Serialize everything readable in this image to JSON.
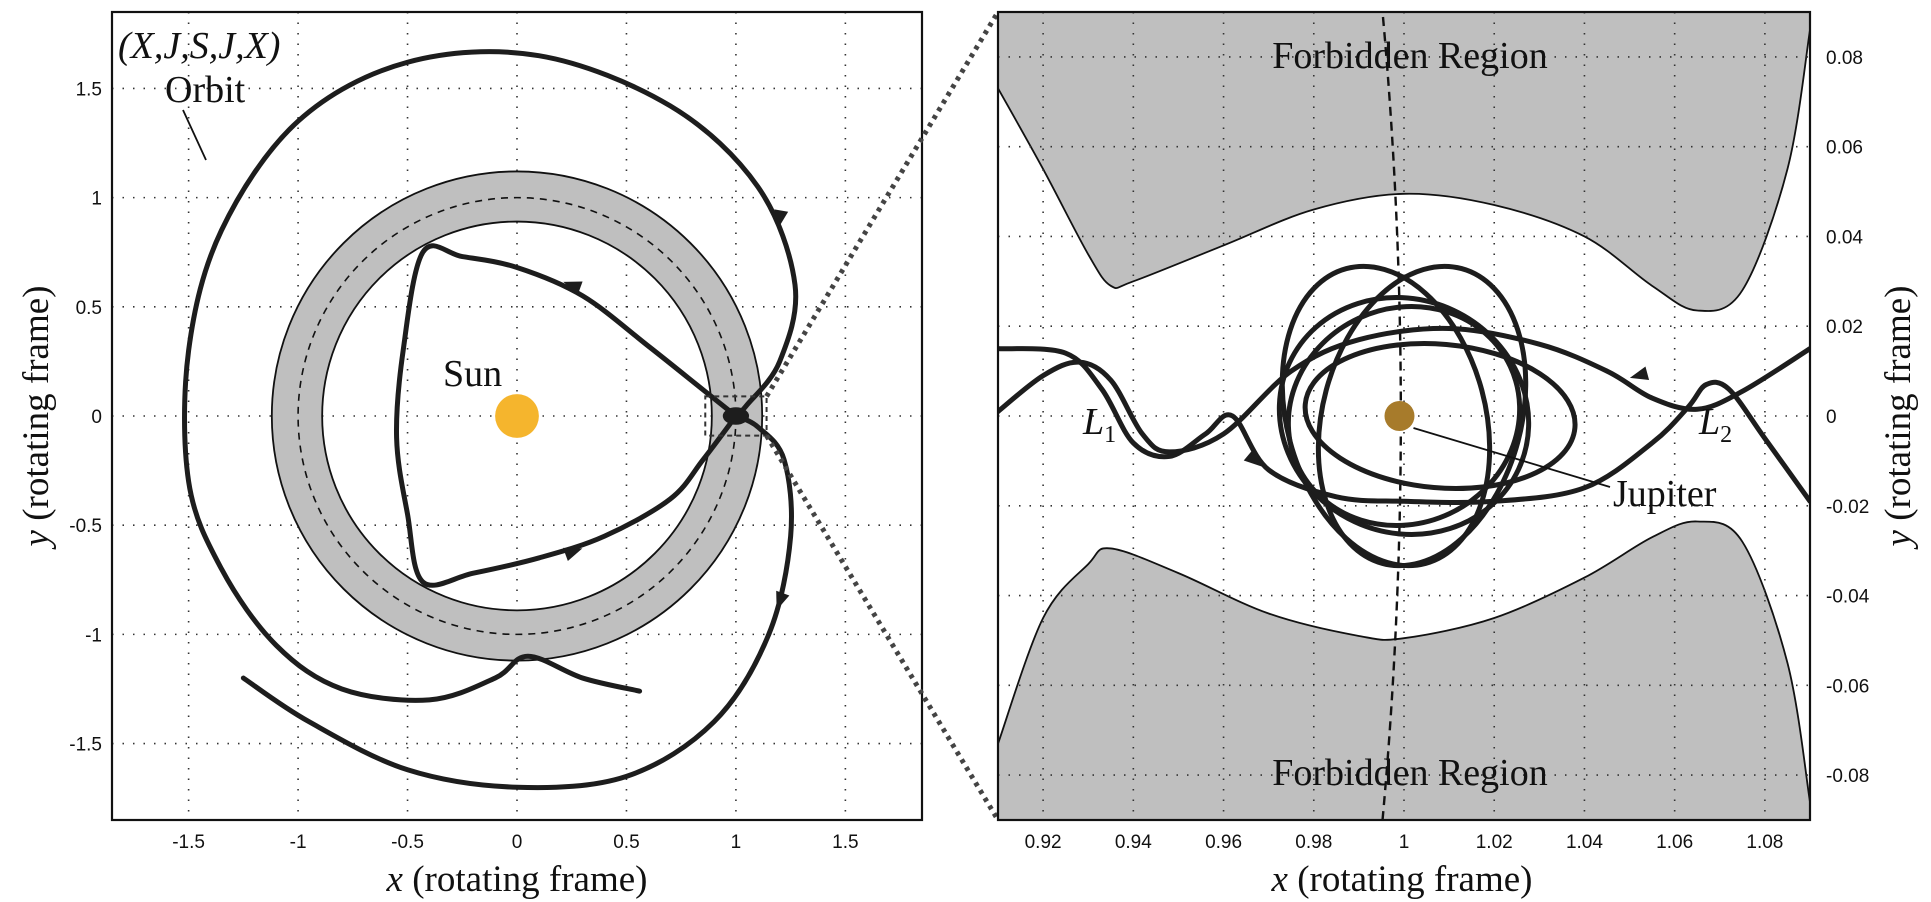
{
  "chart_data": [
    {
      "type": "line",
      "panel": "left",
      "xlabel_var": "x",
      "xlabel_rest": " (rotating frame)",
      "ylabel_var": "y",
      "ylabel_rest": " (rotating frame)",
      "xlim": [
        -1.85,
        1.85
      ],
      "ylim": [
        -1.85,
        1.85
      ],
      "xticks": [
        -1.5,
        -1,
        -0.5,
        0,
        0.5,
        1,
        1.5
      ],
      "yticks": [
        -1.5,
        -1,
        -0.5,
        0,
        0.5,
        1,
        1.5
      ],
      "xtick_labels": [
        "-1.5",
        "-1",
        "-0.5",
        "0",
        "0.5",
        "1",
        "1.5"
      ],
      "ytick_labels": [
        "-1.5",
        "-1",
        "-0.5",
        "0",
        "0.5",
        "1",
        "1.5"
      ],
      "grid": true,
      "annotations": {
        "orbit_name": "(X,J,S,J,X)",
        "orbit_word": "Orbit",
        "sun": "Sun"
      },
      "sun": {
        "x": 0,
        "y": 0,
        "color": "#f5b52d"
      },
      "jupiter": {
        "x": 1,
        "y": 0,
        "color": "#1d1d1d"
      },
      "annulus": {
        "inner_radius": 0.89,
        "outer_radius": 1.12,
        "dashed_radius": 1.0,
        "color": "#bfbfbf"
      },
      "series": [
        {
          "points": [
            [
              0.56,
              -1.26
            ],
            [
              0.3,
              -1.2
            ],
            [
              0.05,
              -1.1
            ],
            [
              -0.1,
              -1.2
            ],
            [
              -0.4,
              -1.3
            ],
            [
              -0.8,
              -1.25
            ],
            [
              -1.1,
              -1.05
            ],
            [
              -1.35,
              -0.7
            ],
            [
              -1.5,
              -0.3
            ],
            [
              -1.5,
              0.3
            ],
            [
              -1.35,
              0.85
            ],
            [
              -1.0,
              1.35
            ],
            [
              -0.5,
              1.62
            ],
            [
              0.1,
              1.65
            ],
            [
              0.7,
              1.42
            ],
            [
              1.1,
              1.05
            ],
            [
              1.27,
              0.6
            ],
            [
              1.2,
              0.25
            ],
            [
              1.05,
              0.05
            ],
            [
              1.0,
              0
            ]
          ]
        },
        {
          "points": [
            [
              1.0,
              0
            ],
            [
              1.1,
              -0.05
            ],
            [
              1.22,
              -0.2
            ],
            [
              1.25,
              -0.55
            ],
            [
              1.15,
              -1.0
            ],
            [
              0.9,
              -1.4
            ],
            [
              0.5,
              -1.65
            ],
            [
              0.0,
              -1.7
            ],
            [
              -0.5,
              -1.62
            ],
            [
              -0.95,
              -1.4
            ],
            [
              -1.25,
              -1.2
            ]
          ]
        },
        {
          "points": [
            [
              1.0,
              0
            ],
            [
              0.85,
              0.12
            ],
            [
              0.6,
              0.32
            ],
            [
              0.3,
              0.55
            ],
            [
              0.0,
              0.68
            ],
            [
              -0.25,
              0.73
            ],
            [
              -0.43,
              0.75
            ],
            [
              -0.52,
              0.3
            ],
            [
              -0.55,
              -0.1
            ],
            [
              -0.5,
              -0.45
            ],
            [
              -0.43,
              -0.76
            ],
            [
              -0.2,
              -0.72
            ],
            [
              0.1,
              -0.65
            ],
            [
              0.4,
              -0.55
            ],
            [
              0.7,
              -0.38
            ],
            [
              0.85,
              -0.2
            ],
            [
              1.0,
              0
            ]
          ]
        }
      ],
      "arrows": [
        [
          1.2,
          0.9
        ],
        [
          0.25,
          0.6
        ],
        [
          0.26,
          -0.62
        ],
        [
          1.2,
          -0.85
        ]
      ]
    },
    {
      "type": "line",
      "panel": "right",
      "xlabel_var": "x",
      "xlabel_rest": " (rotating frame)",
      "ylabel_var": "y",
      "ylabel_rest": " (rotating frame)",
      "xlim": [
        0.91,
        1.09
      ],
      "ylim": [
        -0.09,
        0.09
      ],
      "xticks": [
        0.92,
        0.94,
        0.96,
        0.98,
        1,
        1.02,
        1.04,
        1.06,
        1.08
      ],
      "yticks": [
        0.08,
        0.06,
        0.04,
        0.02,
        0,
        -0.02,
        -0.04,
        -0.06,
        -0.08
      ],
      "xtick_labels": [
        "0.92",
        "0.94",
        "0.96",
        "0.98",
        "1",
        "1.02",
        "1.04",
        "1.06",
        "1.08"
      ],
      "ytick_labels": [
        "0.08",
        "0.06",
        "0.04",
        "0.02",
        "0",
        "-0.02",
        "-0.04",
        "-0.06",
        "-0.08"
      ],
      "grid": true,
      "annotations": {
        "forbidden_top": "Forbidden Region",
        "forbidden_bottom": "Forbidden Region",
        "L1": "L",
        "L1_sub": "1",
        "L2": "L",
        "L2_sub": "2",
        "jupiter": "Jupiter"
      },
      "jupiter": {
        "x": 0.999,
        "y": 0,
        "color": "#a77b2b"
      },
      "forbidden_region_color": "#bfbfbf",
      "forbidden_top_boundary": [
        [
          0.91,
          0.073
        ],
        [
          0.92,
          0.055
        ],
        [
          0.93,
          0.036
        ],
        [
          0.935,
          0.029
        ],
        [
          0.94,
          0.03
        ],
        [
          0.96,
          0.038
        ],
        [
          0.98,
          0.046
        ],
        [
          1.0,
          0.0495
        ],
        [
          1.02,
          0.047
        ],
        [
          1.04,
          0.04
        ],
        [
          1.055,
          0.029
        ],
        [
          1.065,
          0.0235
        ],
        [
          1.075,
          0.028
        ],
        [
          1.085,
          0.055
        ],
        [
          1.09,
          0.086
        ]
      ],
      "forbidden_bottom_boundary": [
        [
          0.91,
          -0.073
        ],
        [
          0.92,
          -0.045
        ],
        [
          0.93,
          -0.033
        ],
        [
          0.935,
          -0.0295
        ],
        [
          0.95,
          -0.035
        ],
        [
          0.97,
          -0.044
        ],
        [
          0.99,
          -0.049
        ],
        [
          1.0,
          -0.0495
        ],
        [
          1.02,
          -0.045
        ],
        [
          1.04,
          -0.036
        ],
        [
          1.055,
          -0.027
        ],
        [
          1.065,
          -0.0235
        ],
        [
          1.075,
          -0.028
        ],
        [
          1.085,
          -0.055
        ],
        [
          1.09,
          -0.086
        ]
      ],
      "series": [
        {
          "points": [
            [
              0.91,
              0.015
            ],
            [
              0.925,
              0.014
            ],
            [
              0.933,
              0.006
            ],
            [
              0.94,
              -0.006
            ],
            [
              0.948,
              -0.009
            ],
            [
              0.956,
              -0.004
            ],
            [
              0.962,
              0.0
            ],
            [
              0.97,
              -0.012
            ],
            [
              0.985,
              -0.018
            ],
            [
              1.0,
              -0.019
            ],
            [
              1.02,
              -0.019
            ],
            [
              1.04,
              -0.016
            ],
            [
              1.055,
              -0.006
            ],
            [
              1.063,
              0.002
            ],
            [
              1.067,
              0.007
            ],
            [
              1.072,
              0.006
            ],
            [
              1.08,
              -0.005
            ],
            [
              1.09,
              -0.019
            ]
          ]
        },
        {
          "points": [
            [
              0.91,
              0.001
            ],
            [
              0.92,
              0.009
            ],
            [
              0.928,
              0.012
            ],
            [
              0.935,
              0.008
            ],
            [
              0.942,
              -0.004
            ],
            [
              0.948,
              -0.008
            ],
            [
              0.96,
              -0.004
            ],
            [
              0.975,
              0.01
            ],
            [
              0.99,
              0.017
            ],
            [
              1.01,
              0.0195
            ],
            [
              1.03,
              0.016
            ],
            [
              1.045,
              0.01
            ],
            [
              1.055,
              0.004
            ],
            [
              1.065,
              0.0015
            ],
            [
              1.075,
              0.0055
            ],
            [
              1.09,
              0.015
            ]
          ]
        },
        {
          "ellipse": [
            0.996,
            0.0,
            0.022,
            0.034,
            -15
          ]
        },
        {
          "ellipse": [
            1.004,
            0.0,
            0.022,
            0.034,
            15
          ]
        },
        {
          "ellipse": [
            1.0,
            0.0,
            0.028,
            0.026,
            25
          ]
        },
        {
          "ellipse": [
            1.0,
            0.0,
            0.026,
            0.024,
            -25
          ]
        },
        {
          "ellipse": [
            1.008,
            0.0,
            0.03,
            0.016,
            5
          ]
        }
      ],
      "arrows": [
        [
          0.967,
          -0.01
        ],
        [
          1.052,
          0.009
        ]
      ]
    }
  ]
}
